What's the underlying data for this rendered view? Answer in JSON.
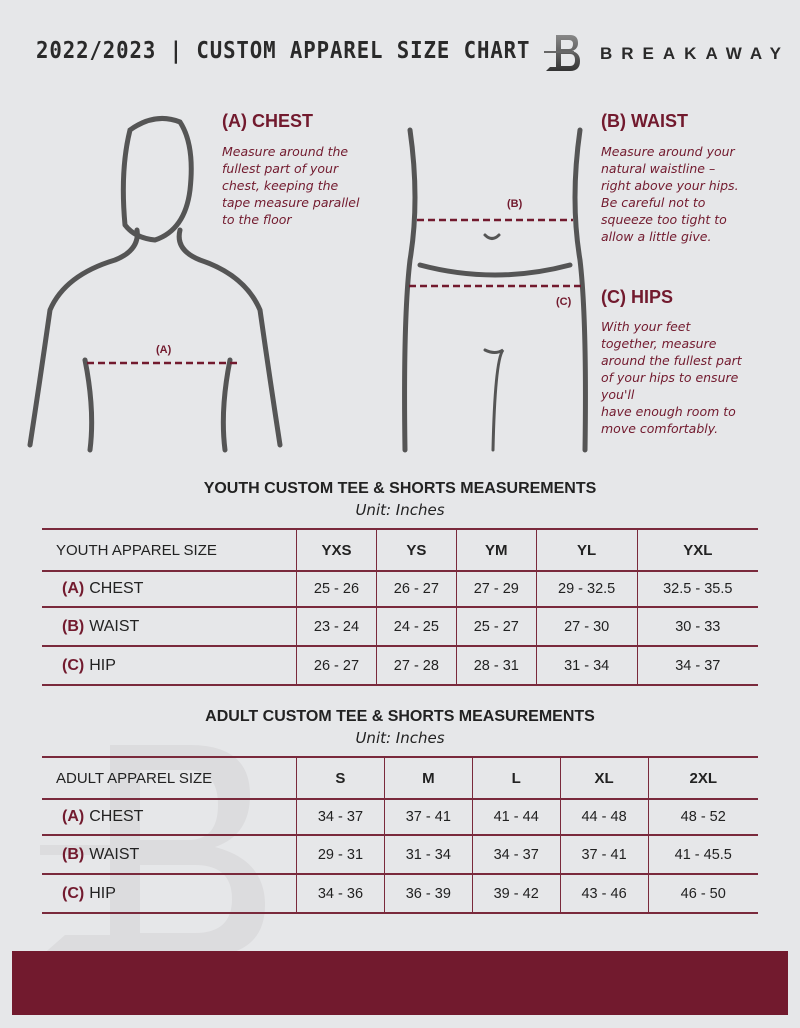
{
  "header": {
    "title": "2022/2023  |  CUSTOM APPAREL SIZE CHART",
    "brand": "BREAKAWAY",
    "logo_letter": "B"
  },
  "measures": {
    "chest": {
      "heading": "(A) CHEST",
      "desc": "Measure around the\nfullest part of your\nchest, keeping the\ntape measure parallel\nto the floor",
      "marker": "(A)"
    },
    "waist": {
      "heading": "(B) WAIST",
      "desc": "Measure around your\nnatural waistline –\nright above your hips.\nBe careful not to\nsqueeze too tight to\nallow a little give.",
      "marker": "(B)"
    },
    "hips": {
      "heading": "(C) HIPS",
      "desc": "With your feet\ntogether, measure\naround the fullest part\nof your hips to ensure\nyou'll\nhave enough room to\nmove comfortably.",
      "marker": "(C)"
    }
  },
  "youth": {
    "title": "YOUTH CUSTOM TEE & SHORTS MEASUREMENTS",
    "unit": "Unit: Inches",
    "header": [
      "YOUTH APPAREL SIZE",
      "YXS",
      "YS",
      "YM",
      "YL",
      "YXL"
    ],
    "rows": [
      {
        "code": "(A)",
        "name": "CHEST",
        "values": [
          "25 - 26",
          "26 - 27",
          "27 - 29",
          "29 - 32.5",
          "32.5 - 35.5"
        ]
      },
      {
        "code": "(B)",
        "name": "WAIST",
        "values": [
          "23 - 24",
          "24 - 25",
          "25 - 27",
          "27 - 30",
          "30 - 33"
        ]
      },
      {
        "code": "(C)",
        "name": "HIP",
        "values": [
          "26 - 27",
          "27 - 28",
          "28 - 31",
          "31 - 34",
          "34 - 37"
        ]
      }
    ]
  },
  "adult": {
    "title": "ADULT CUSTOM TEE & SHORTS MEASUREMENTS",
    "unit": "Unit: Inches",
    "header": [
      "ADULT APPAREL SIZE",
      "S",
      "M",
      "L",
      "XL",
      "2XL"
    ],
    "rows": [
      {
        "code": "(A)",
        "name": "CHEST",
        "values": [
          "34 - 37",
          "37 - 41",
          "41 - 44",
          "44 - 48",
          "48 - 52"
        ]
      },
      {
        "code": "(B)",
        "name": "WAIST",
        "values": [
          "29 - 31",
          "31 - 34",
          "34 - 37",
          "37 - 41",
          "41 - 45.5"
        ]
      },
      {
        "code": "(C)",
        "name": "HIP",
        "values": [
          "34 - 36",
          "36 - 39",
          "39 - 42",
          "43 - 46",
          "46 - 50"
        ]
      }
    ]
  },
  "colors": {
    "accent": "#721a2e",
    "background": "#e6e7e9",
    "figure": "#555555"
  }
}
